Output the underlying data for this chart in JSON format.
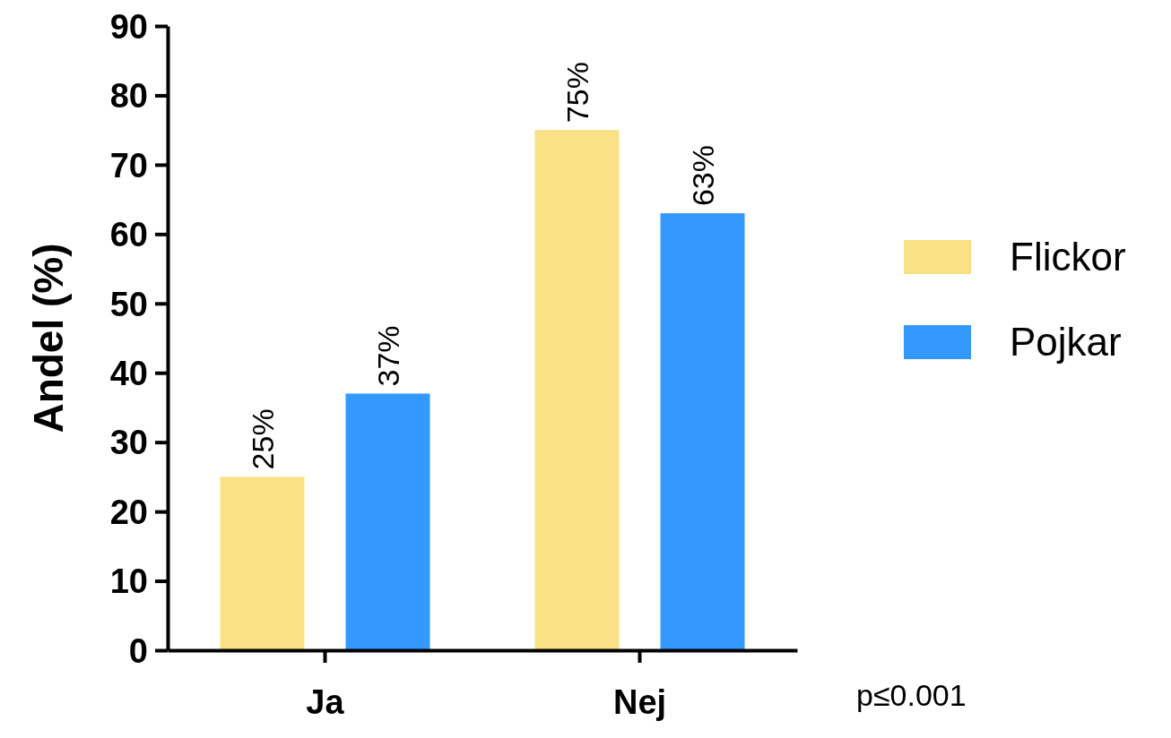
{
  "chart_data": {
    "type": "bar",
    "ylabel": "Andel (%)",
    "categories": [
      "Ja",
      "Nej"
    ],
    "series": [
      {
        "name": "Flickor",
        "color": "#f9e286",
        "values": [
          25,
          75
        ],
        "value_labels": [
          "25%",
          "75%"
        ]
      },
      {
        "name": "Pojkar",
        "color": "#3399ff",
        "values": [
          37,
          63
        ],
        "value_labels": [
          "37%",
          "63%"
        ]
      }
    ],
    "ylim": [
      0,
      90
    ],
    "yticks": [
      0,
      10,
      20,
      30,
      40,
      50,
      60,
      70,
      80,
      90
    ],
    "grid": false,
    "legend": "right",
    "annotations": [
      "p≤0.001"
    ]
  }
}
